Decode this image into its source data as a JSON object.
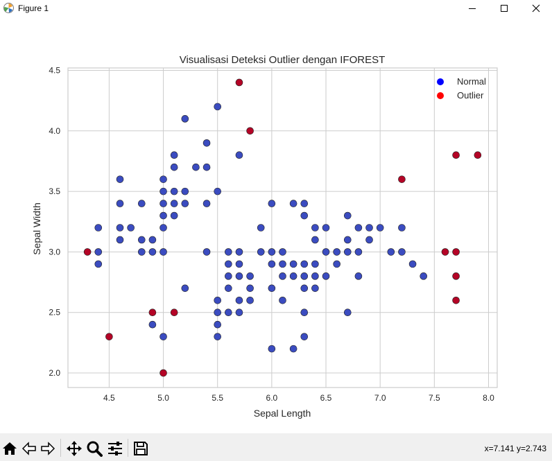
{
  "window": {
    "title": "Figure 1"
  },
  "toolbar": {
    "icons": [
      "home-icon",
      "back-icon",
      "forward-icon",
      "pan-icon",
      "zoom-icon",
      "configure-subplots-icon",
      "save-icon"
    ],
    "coords": "x=7.141 y=2.743"
  },
  "chart_data": {
    "type": "scatter",
    "title": "Visualisasi Deteksi Outlier dengan IFOREST",
    "xlabel": "Sepal Length",
    "ylabel": "Sepal Width",
    "xlim": [
      4.12,
      8.08
    ],
    "ylim": [
      1.88,
      4.52
    ],
    "xticks": [
      "4.5",
      "5.0",
      "5.5",
      "6.0",
      "6.5",
      "7.0",
      "7.5",
      "8.0"
    ],
    "yticks": [
      "2.0",
      "2.5",
      "3.0",
      "3.5",
      "4.0",
      "4.5"
    ],
    "grid": true,
    "legend_position": "top-right",
    "legend": [
      {
        "name": "Normal",
        "color": "#0000ff"
      },
      {
        "name": "Outlier",
        "color": "#ff0000"
      }
    ],
    "colors": {
      "normal_marker": "#3b4cc0",
      "outlier_marker": "#b40426"
    },
    "series": [
      {
        "name": "Normal",
        "points": [
          [
            4.4,
            3.2
          ],
          [
            4.4,
            3.0
          ],
          [
            4.4,
            2.9
          ],
          [
            4.6,
            3.6
          ],
          [
            4.6,
            3.4
          ],
          [
            4.6,
            3.2
          ],
          [
            4.6,
            3.1
          ],
          [
            4.7,
            3.2
          ],
          [
            4.8,
            3.4
          ],
          [
            4.8,
            3.1
          ],
          [
            4.8,
            3.0
          ],
          [
            4.9,
            3.1
          ],
          [
            4.9,
            3.0
          ],
          [
            4.9,
            2.4
          ],
          [
            5.0,
            3.6
          ],
          [
            5.0,
            3.5
          ],
          [
            5.0,
            3.4
          ],
          [
            5.0,
            3.3
          ],
          [
            5.0,
            3.2
          ],
          [
            5.0,
            3.0
          ],
          [
            5.0,
            2.3
          ],
          [
            5.1,
            3.8
          ],
          [
            5.1,
            3.7
          ],
          [
            5.1,
            3.5
          ],
          [
            5.1,
            3.4
          ],
          [
            5.1,
            3.3
          ],
          [
            5.2,
            4.1
          ],
          [
            5.2,
            3.5
          ],
          [
            5.2,
            3.4
          ],
          [
            5.2,
            2.7
          ],
          [
            5.3,
            3.7
          ],
          [
            5.4,
            3.9
          ],
          [
            5.4,
            3.7
          ],
          [
            5.4,
            3.4
          ],
          [
            5.4,
            3.0
          ],
          [
            5.5,
            4.2
          ],
          [
            5.5,
            3.5
          ],
          [
            5.5,
            2.6
          ],
          [
            5.5,
            2.5
          ],
          [
            5.5,
            2.4
          ],
          [
            5.5,
            2.3
          ],
          [
            5.6,
            3.0
          ],
          [
            5.6,
            2.9
          ],
          [
            5.6,
            2.8
          ],
          [
            5.6,
            2.7
          ],
          [
            5.6,
            2.5
          ],
          [
            5.7,
            3.8
          ],
          [
            5.7,
            3.0
          ],
          [
            5.7,
            2.9
          ],
          [
            5.7,
            2.8
          ],
          [
            5.7,
            2.6
          ],
          [
            5.7,
            2.5
          ],
          [
            5.8,
            2.8
          ],
          [
            5.8,
            2.7
          ],
          [
            5.8,
            2.6
          ],
          [
            5.9,
            3.2
          ],
          [
            5.9,
            3.0
          ],
          [
            6.0,
            3.4
          ],
          [
            6.0,
            3.0
          ],
          [
            6.0,
            2.9
          ],
          [
            6.0,
            2.7
          ],
          [
            6.0,
            2.2
          ],
          [
            6.1,
            3.0
          ],
          [
            6.1,
            2.9
          ],
          [
            6.1,
            2.8
          ],
          [
            6.1,
            2.6
          ],
          [
            6.2,
            3.4
          ],
          [
            6.2,
            2.9
          ],
          [
            6.2,
            2.8
          ],
          [
            6.2,
            2.2
          ],
          [
            6.3,
            3.4
          ],
          [
            6.3,
            3.3
          ],
          [
            6.3,
            2.9
          ],
          [
            6.3,
            2.8
          ],
          [
            6.3,
            2.7
          ],
          [
            6.3,
            2.5
          ],
          [
            6.3,
            2.3
          ],
          [
            6.4,
            3.2
          ],
          [
            6.4,
            3.1
          ],
          [
            6.4,
            2.9
          ],
          [
            6.4,
            2.8
          ],
          [
            6.4,
            2.7
          ],
          [
            6.5,
            3.2
          ],
          [
            6.5,
            3.0
          ],
          [
            6.5,
            2.8
          ],
          [
            6.6,
            3.0
          ],
          [
            6.6,
            2.9
          ],
          [
            6.7,
            3.3
          ],
          [
            6.7,
            3.1
          ],
          [
            6.7,
            3.0
          ],
          [
            6.7,
            2.5
          ],
          [
            6.8,
            3.2
          ],
          [
            6.8,
            3.0
          ],
          [
            6.8,
            2.8
          ],
          [
            6.9,
            3.2
          ],
          [
            6.9,
            3.1
          ],
          [
            7.0,
            3.2
          ],
          [
            7.1,
            3.0
          ],
          [
            7.2,
            3.2
          ],
          [
            7.2,
            3.0
          ],
          [
            7.3,
            2.9
          ],
          [
            7.4,
            2.8
          ]
        ]
      },
      {
        "name": "Outlier",
        "points": [
          [
            4.3,
            3.0
          ],
          [
            4.5,
            2.3
          ],
          [
            4.9,
            2.5
          ],
          [
            5.0,
            2.0
          ],
          [
            5.1,
            2.5
          ],
          [
            5.7,
            4.4
          ],
          [
            5.8,
            4.0
          ],
          [
            7.2,
            3.6
          ],
          [
            7.6,
            3.0
          ],
          [
            7.7,
            3.8
          ],
          [
            7.7,
            3.0
          ],
          [
            7.7,
            2.8
          ],
          [
            7.7,
            2.6
          ],
          [
            7.9,
            3.8
          ]
        ]
      }
    ]
  }
}
